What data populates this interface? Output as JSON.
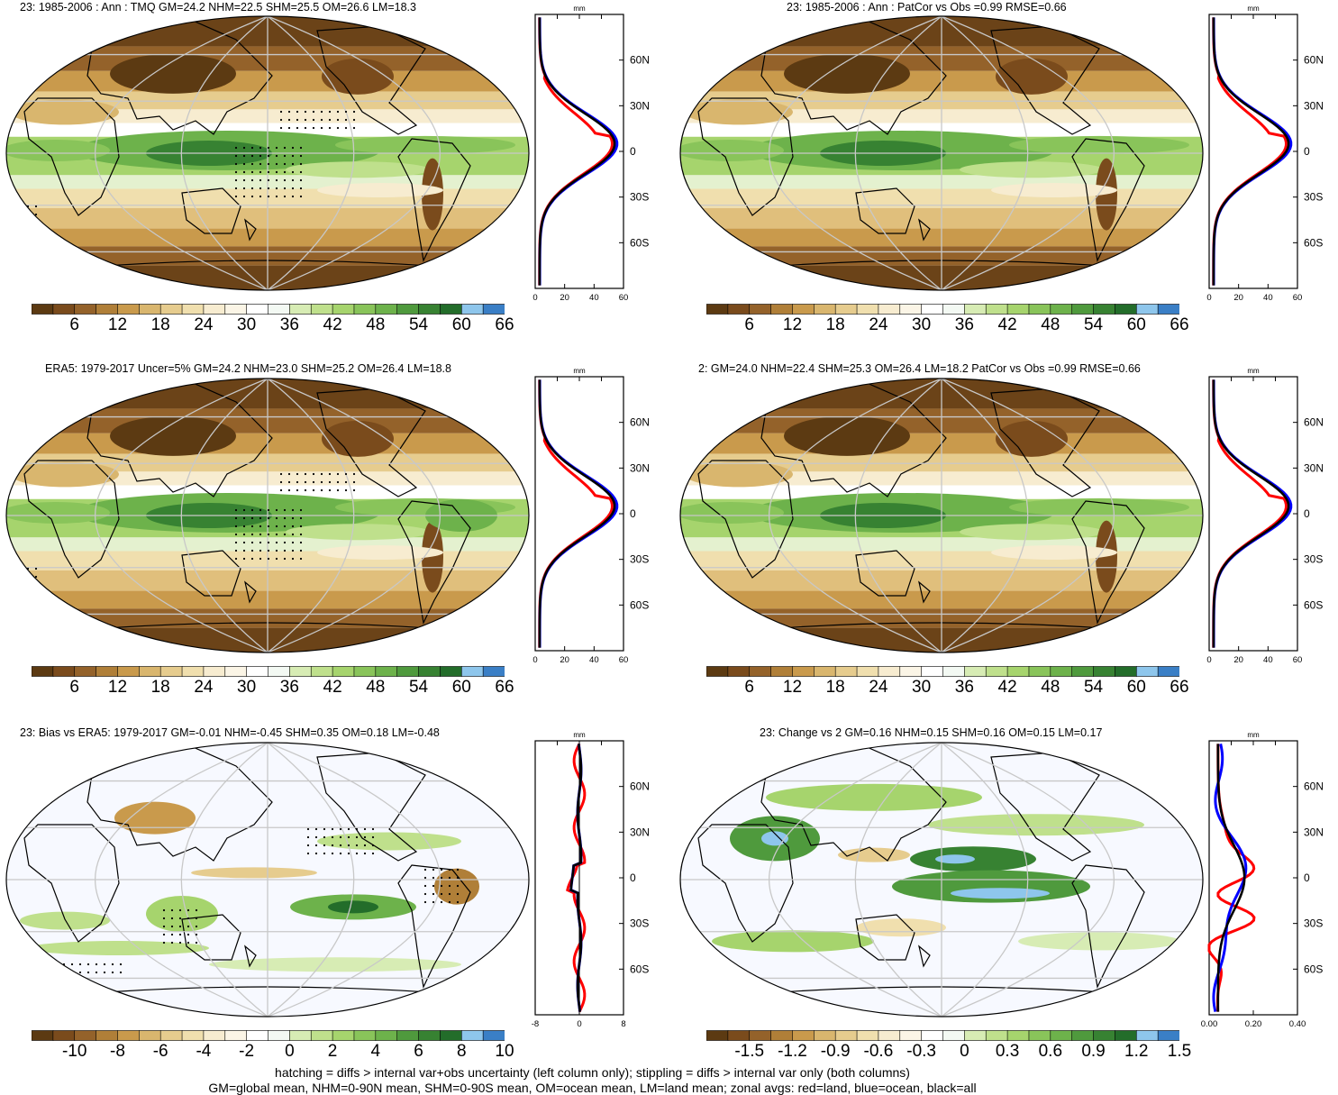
{
  "panels": [
    {
      "id": "p1",
      "title": "23: 1985-2006 : Ann : TMQ GM=24.2 NHM=22.5 SHM=25.5 OM=26.6 LM=18.3",
      "type": "mean",
      "profile_ticks": [
        "0",
        "20",
        "40",
        "60"
      ]
    },
    {
      "id": "p2",
      "title": "23: 1985-2006 : Ann : PatCor vs Obs =0.99 RMSE=0.66",
      "type": "mean",
      "profile_ticks": [
        "0",
        "20",
        "40",
        "60"
      ]
    },
    {
      "id": "p3",
      "title": "ERA5: 1979-2017 Uncer=5% GM=24.2 NHM=23.0 SHM=25.2 OM=26.4 LM=18.8",
      "type": "mean",
      "profile_ticks": [
        "0",
        "20",
        "40",
        "60"
      ]
    },
    {
      "id": "p4",
      "title": "2: GM=24.0 NHM=22.4 SHM=25.3 OM=26.4 LM=18.2 PatCor vs Obs =0.99 RMSE=0.66",
      "type": "mean",
      "profile_ticks": [
        "0",
        "20",
        "40",
        "60"
      ]
    },
    {
      "id": "p5",
      "title": "23: Bias vs ERA5: 1979-2017 GM=-0.01 NHM=-0.45 SHM=0.35 OM=0.18 LM=-0.48",
      "type": "bias",
      "profile_ticks": [
        "-8",
        "0",
        "8"
      ]
    },
    {
      "id": "p6",
      "title": "23: Change vs 2 GM=0.16 NHM=0.15 SHM=0.16 OM=0.15 LM=0.17",
      "type": "change",
      "profile_ticks": [
        "0.00",
        "0.20",
        "0.40"
      ]
    }
  ],
  "profile_unit": "mm",
  "lat_labels": [
    "60N",
    "30N",
    "0",
    "30S",
    "60S"
  ],
  "colorbars": {
    "mean": [
      "6",
      "12",
      "18",
      "24",
      "30",
      "36",
      "42",
      "48",
      "54",
      "60",
      "66"
    ],
    "bias": [
      "-10",
      "-8",
      "-6",
      "-4",
      "-2",
      "0",
      "2",
      "4",
      "6",
      "8",
      "10"
    ],
    "change": [
      "-1.5",
      "-1.2",
      "-0.9",
      "-0.6",
      "-0.3",
      "0",
      "0.3",
      "0.6",
      "0.9",
      "1.2",
      "1.5"
    ]
  },
  "colors": {
    "mean_scale": [
      "#5c3a12",
      "#7a4b1c",
      "#94622a",
      "#b07f38",
      "#c99a4c",
      "#d9b66e",
      "#e6cc8e",
      "#f0dfae",
      "#f7ecd0",
      "#fbf5e6",
      "#ffffff",
      "#f3f9f3",
      "#d7ecb4",
      "#bfe08c",
      "#a6d46d",
      "#89c45a",
      "#6db24b",
      "#4f9a3d",
      "#378232",
      "#236d2a",
      "#8ec6ec",
      "#3a7fc6"
    ],
    "land_curve": "#ff0000",
    "ocean_curve": "#0000ff",
    "all_curve": "#000000"
  },
  "footnotes": [
    "hatching = diffs > internal var+obs uncertainty (left column only); stippling = diffs > internal var only (both columns)",
    "GM=global mean, NHM=0-90N mean, SHM=0-90S mean, OM=ocean mean, LM=land mean; zonal avgs: red=land, blue=ocean, black=all"
  ]
}
